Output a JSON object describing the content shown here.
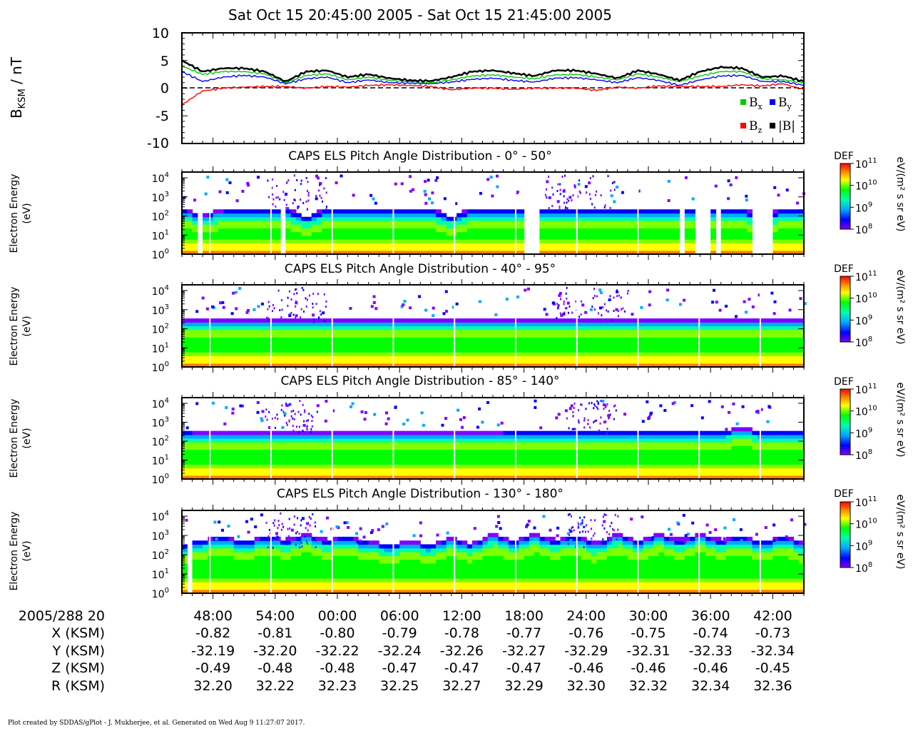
{
  "page": {
    "main_title": "Sat Oct 15 20:45:00 2005 - Sat Oct 15 21:45:00 2005",
    "footer": "Plot created by SDDAS/gPlot - J. Mukherjee, et al.  Generated on Wed Aug 9 11:27:07 2017."
  },
  "colors": {
    "bx": "#00cc00",
    "by": "#0000ff",
    "bz": "#ff0000",
    "bmag": "#000000",
    "colormap": [
      "#8000ff",
      "#0000ff",
      "#00aaff",
      "#00ffaa",
      "#00ff00",
      "#ffff00",
      "#ff8000",
      "#ff0000"
    ]
  },
  "chart_data": [
    {
      "type": "line",
      "ylabel_main": "B",
      "ylabel_sub": "KSM",
      "ylabel_unit": " / nT",
      "ylim": [
        -10,
        10
      ],
      "yticks": [
        "10",
        "5",
        "0",
        "-5",
        "-10"
      ],
      "zero_line": "dashed",
      "legend_placement": "bottom-right",
      "x_minutes": [
        0,
        2,
        4,
        6,
        8,
        10,
        12,
        14,
        16,
        18,
        20,
        22,
        24,
        26,
        28,
        30,
        32,
        34,
        36,
        38,
        40,
        42,
        44,
        46,
        48,
        50,
        52,
        54,
        56,
        58,
        60
      ],
      "series": [
        {
          "name_main": "B",
          "name_sub": "x",
          "key": "bx",
          "values": [
            4.0,
            2.5,
            3.0,
            3.0,
            2.6,
            1.0,
            2.3,
            2.6,
            1.5,
            2.0,
            1.4,
            1.2,
            1.0,
            1.5,
            2.2,
            2.4,
            2.0,
            1.7,
            2.4,
            2.5,
            2.0,
            1.5,
            2.6,
            2.0,
            1.2,
            2.2,
            3.0,
            3.0,
            1.7,
            1.5,
            1.0
          ]
        },
        {
          "name_main": "B",
          "name_sub": "y",
          "key": "by",
          "values": [
            3.0,
            1.2,
            2.0,
            2.3,
            2.0,
            0.8,
            1.7,
            2.0,
            1.0,
            1.5,
            1.0,
            0.9,
            0.8,
            1.1,
            1.6,
            1.8,
            1.4,
            1.1,
            1.8,
            1.9,
            1.5,
            1.0,
            1.9,
            1.4,
            0.5,
            1.5,
            2.2,
            2.3,
            1.2,
            1.2,
            0.5
          ]
        },
        {
          "name_main": "B",
          "name_sub": "z",
          "key": "bz",
          "values": [
            -3.0,
            -0.5,
            0.0,
            0.2,
            0.3,
            0.3,
            0.0,
            0.3,
            0.2,
            0.5,
            0.6,
            0.5,
            0.3,
            -0.3,
            0.0,
            0.0,
            -0.2,
            0.0,
            0.0,
            0.0,
            -0.4,
            0.2,
            0.0,
            0.4,
            0.3,
            0.3,
            0.3,
            0.6,
            0.4,
            0.8,
            -0.3
          ]
        },
        {
          "name_main": "|B|",
          "name_sub": "",
          "key": "bmag",
          "values": [
            5.0,
            3.0,
            3.6,
            3.6,
            3.0,
            1.2,
            3.0,
            3.2,
            2.0,
            2.5,
            1.8,
            1.4,
            1.3,
            2.0,
            3.0,
            3.2,
            2.7,
            2.2,
            3.2,
            3.2,
            2.6,
            1.8,
            3.2,
            2.5,
            1.4,
            3.0,
            3.8,
            3.6,
            2.0,
            2.2,
            1.2
          ]
        }
      ]
    },
    {
      "type": "heatmap",
      "title": "CAPS ELS Pitch Angle Distribution - 0° - 50°",
      "ylabel": [
        "Electron Energy",
        "(eV)"
      ],
      "ylim_log10": [
        0,
        4.3
      ],
      "ytick_exponents": [
        "4",
        "3",
        "2",
        "1",
        "0"
      ],
      "colorbar": {
        "label": "DEF",
        "unit": "eV/(m² s sr eV)",
        "ticks_log10": [
          "11",
          "10",
          "9",
          "8"
        ]
      },
      "cutoff_log10_eV": [
        2.4,
        2.1,
        2.35,
        2.4,
        2.4,
        2.4,
        2.0,
        2.4,
        2.4,
        2.4,
        2.4,
        2.4,
        2.4,
        2.0,
        2.4,
        2.4,
        2.4,
        2.4,
        2.4,
        2.4,
        2.4,
        2.4,
        2.4,
        2.4,
        2.4,
        2.4,
        2.4,
        2.4,
        2.0,
        2.4,
        2.4
      ],
      "gaps_minutes": [
        [
          1.5,
          2.0
        ],
        [
          9.5,
          9.9
        ],
        [
          10.4,
          10.7
        ],
        [
          32.8,
          34.5
        ],
        [
          47.8,
          48.4
        ],
        [
          49.5,
          51.2
        ],
        [
          51.7,
          52.0
        ],
        [
          55.2,
          56.8
        ]
      ],
      "bursts_minutes": [
        [
          8,
          14
        ],
        [
          35,
          42
        ]
      ]
    },
    {
      "type": "heatmap",
      "title": "CAPS ELS Pitch Angle Distribution - 40° - 95°",
      "ylabel": [
        "Electron Energy",
        "(eV)"
      ],
      "ylim_log10": [
        0,
        4.3
      ],
      "ytick_exponents": [
        "4",
        "3",
        "2",
        "1",
        "0"
      ],
      "colorbar": {
        "label": "DEF",
        "unit": "eV/(m² s sr eV)",
        "ticks_log10": [
          "11",
          "10",
          "9",
          "8"
        ]
      },
      "cutoff_log10_eV": [
        2.5,
        2.5,
        2.5,
        2.5,
        2.5,
        2.5,
        2.5,
        2.5,
        2.5,
        2.5,
        2.5,
        2.5,
        2.5,
        2.5,
        2.5,
        2.5,
        2.5,
        2.5,
        2.5,
        2.5,
        2.5,
        2.5,
        2.5,
        2.5,
        2.5,
        2.5,
        2.5,
        2.5,
        2.5,
        2.5,
        2.5
      ],
      "gaps_minutes": [],
      "bursts_minutes": [
        [
          8,
          14
        ],
        [
          36,
          43
        ]
      ]
    },
    {
      "type": "heatmap",
      "title": "CAPS ELS Pitch Angle Distribution - 85° - 140°",
      "ylabel": [
        "Electron Energy",
        "(eV)"
      ],
      "ylim_log10": [
        0,
        4.3
      ],
      "ytick_exponents": [
        "4",
        "3",
        "2",
        "1",
        "0"
      ],
      "colorbar": {
        "label": "DEF",
        "unit": "eV/(m² s sr eV)",
        "ticks_log10": [
          "11",
          "10",
          "9",
          "8"
        ]
      },
      "cutoff_log10_eV": [
        2.55,
        2.5,
        2.5,
        2.5,
        2.5,
        2.5,
        2.5,
        2.5,
        2.5,
        2.5,
        2.5,
        2.5,
        2.5,
        2.5,
        2.5,
        2.5,
        2.55,
        2.55,
        2.6,
        2.6,
        2.6,
        2.6,
        2.6,
        2.6,
        2.6,
        2.6,
        2.6,
        2.7,
        2.6,
        2.6,
        2.6
      ],
      "gaps_minutes": [],
      "bursts_minutes": [
        [
          8,
          13
        ],
        [
          37,
          42
        ]
      ]
    },
    {
      "type": "heatmap",
      "title": "CAPS ELS Pitch Angle Distribution - 130° - 180°",
      "ylabel": [
        "Electron Energy",
        "(eV)"
      ],
      "ylim_log10": [
        0,
        4.3
      ],
      "ytick_exponents": [
        "4",
        "3",
        "2",
        "1",
        "0"
      ],
      "colorbar": {
        "label": "DEF",
        "unit": "eV/(m² s sr eV)",
        "ticks_log10": [
          "11",
          "10",
          "9",
          "8"
        ]
      },
      "cutoff_log10_eV": [
        2.6,
        2.8,
        3.0,
        2.7,
        3.0,
        2.8,
        3.1,
        2.8,
        3.0,
        2.7,
        2.6,
        2.7,
        2.6,
        2.9,
        2.6,
        3.1,
        2.7,
        3.1,
        2.8,
        3.0,
        2.6,
        3.1,
        2.7,
        3.1,
        2.8,
        3.1,
        2.8,
        3.0,
        2.7,
        3.0,
        2.6
      ],
      "gaps_minutes": [
        [
          0.5,
          1.2
        ]
      ],
      "bursts_minutes": [
        [
          8,
          13
        ],
        [
          37,
          42
        ]
      ]
    }
  ],
  "time_axis": {
    "ticks_minutes": [
      3,
      9,
      15,
      21,
      27,
      33,
      39,
      45,
      51,
      57
    ],
    "row_labels": [
      "2005/288 20",
      "X (KSM)",
      "Y (KSM)",
      "Z (KSM)",
      "R (KSM)"
    ],
    "times": [
      "48:00",
      "54:00",
      "00:00",
      "06:00",
      "12:00",
      "18:00",
      "24:00",
      "30:00",
      "36:00",
      "42:00"
    ],
    "x": [
      "-0.82",
      "-0.81",
      "-0.80",
      "-0.79",
      "-0.78",
      "-0.77",
      "-0.76",
      "-0.75",
      "-0.74",
      "-0.73"
    ],
    "y": [
      "-32.19",
      "-32.20",
      "-32.22",
      "-32.24",
      "-32.26",
      "-32.27",
      "-32.29",
      "-32.31",
      "-32.33",
      "-32.34"
    ],
    "z": [
      "-0.49",
      "-0.48",
      "-0.48",
      "-0.47",
      "-0.47",
      "-0.47",
      "-0.46",
      "-0.46",
      "-0.46",
      "-0.45"
    ],
    "r": [
      "32.20",
      "32.22",
      "32.23",
      "32.25",
      "32.27",
      "32.29",
      "32.30",
      "32.32",
      "32.34",
      "32.36"
    ]
  }
}
